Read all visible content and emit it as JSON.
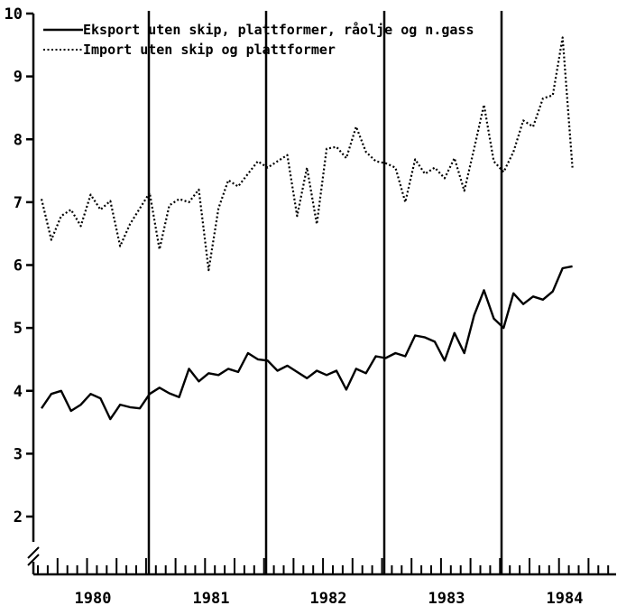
{
  "chart_data": {
    "type": "line",
    "title": "",
    "xlabel": "",
    "ylabel": "",
    "ylim": [
      1,
      10
    ],
    "y_ticks": [
      "2",
      "3",
      "4",
      "5",
      "6",
      "7",
      "8",
      "9",
      "10"
    ],
    "x_tick_labels": [
      "1980",
      "1981",
      "1982",
      "1983",
      "1984"
    ],
    "x_range": [
      "1979-12",
      "1984-12"
    ],
    "axis_break": true,
    "grid": false,
    "year_separator_lines": true,
    "legend_placement": "top-center",
    "series": [
      {
        "name": "Eksport uten skip, plattformer, råolje og n.gass",
        "style": "solid",
        "color": "#000000",
        "start": "1980-01",
        "values": [
          3.72,
          3.95,
          4.0,
          3.68,
          3.78,
          3.95,
          3.88,
          3.55,
          3.78,
          3.74,
          3.72,
          3.95,
          4.05,
          3.96,
          3.9,
          4.35,
          4.15,
          4.28,
          4.25,
          4.35,
          4.3,
          4.6,
          4.5,
          4.48,
          4.32,
          4.4,
          4.3,
          4.2,
          4.32,
          4.25,
          4.32,
          4.02,
          4.35,
          4.28,
          4.55,
          4.52,
          4.6,
          4.55,
          4.88,
          4.85,
          4.78,
          4.48,
          4.92,
          4.6,
          5.2,
          5.6,
          5.15,
          5.0,
          5.55,
          5.38,
          5.5,
          5.45,
          5.58,
          5.95,
          5.98
        ]
      },
      {
        "name": "Import uten skip og plattformer",
        "style": "dotted",
        "color": "#000000",
        "start": "1980-01",
        "values": [
          7.05,
          6.4,
          6.78,
          6.88,
          6.62,
          7.12,
          6.88,
          7.02,
          6.3,
          6.65,
          6.9,
          7.15,
          6.25,
          6.95,
          7.05,
          7.0,
          7.2,
          5.92,
          6.9,
          7.35,
          7.25,
          7.45,
          7.65,
          7.55,
          7.65,
          7.75,
          6.78,
          7.55,
          6.65,
          7.85,
          7.88,
          7.7,
          8.2,
          7.8,
          7.65,
          7.62,
          7.55,
          7.0,
          7.68,
          7.45,
          7.55,
          7.38,
          7.7,
          7.18,
          7.85,
          8.55,
          7.65,
          7.48,
          7.8,
          8.3,
          8.2,
          8.65,
          8.7,
          9.62,
          7.55
        ]
      }
    ]
  }
}
